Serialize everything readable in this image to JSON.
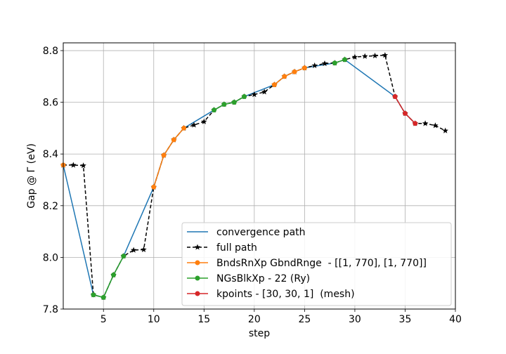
{
  "chart_data": {
    "type": "line",
    "title": "",
    "xlabel": "step",
    "ylabel": "Gap @ Γ (eV)",
    "xlim": [
      1,
      40
    ],
    "ylim": [
      7.8,
      8.83
    ],
    "xticks": [
      5,
      10,
      15,
      20,
      25,
      30,
      35,
      40
    ],
    "yticks": [
      7.8,
      8.0,
      8.2,
      8.4,
      8.6,
      8.8
    ],
    "grid": true,
    "legend_position": "lower-right",
    "series": [
      {
        "name": "convergence path",
        "color": "#1f77b4",
        "style": "solid",
        "marker": "none",
        "points": [
          [
            1,
            8.357
          ],
          [
            4,
            7.855
          ],
          [
            5,
            7.845
          ],
          [
            6,
            7.932
          ],
          [
            7,
            8.005
          ],
          [
            10,
            8.272
          ],
          [
            11,
            8.395
          ],
          [
            12,
            8.455
          ],
          [
            13,
            8.5
          ],
          [
            16,
            8.57
          ],
          [
            17,
            8.592
          ],
          [
            18,
            8.6
          ],
          [
            19,
            8.622
          ],
          [
            22,
            8.668
          ],
          [
            23,
            8.7
          ],
          [
            24,
            8.718
          ],
          [
            25,
            8.733
          ],
          [
            28,
            8.752
          ],
          [
            29,
            8.765
          ],
          [
            34,
            8.622
          ],
          [
            35,
            8.557
          ],
          [
            36,
            8.518
          ]
        ]
      },
      {
        "name": "full path",
        "color": "#000000",
        "style": "dashed",
        "marker": "star",
        "points": [
          [
            1,
            8.357
          ],
          [
            2,
            8.357
          ],
          [
            3,
            8.355
          ],
          [
            4,
            7.855
          ],
          [
            5,
            7.845
          ],
          [
            6,
            7.932
          ],
          [
            7,
            8.005
          ],
          [
            8,
            8.028
          ],
          [
            9,
            8.03
          ],
          [
            10,
            8.272
          ],
          [
            11,
            8.395
          ],
          [
            12,
            8.455
          ],
          [
            13,
            8.5
          ],
          [
            14,
            8.512
          ],
          [
            15,
            8.525
          ],
          [
            16,
            8.57
          ],
          [
            17,
            8.592
          ],
          [
            18,
            8.6
          ],
          [
            19,
            8.622
          ],
          [
            20,
            8.63
          ],
          [
            21,
            8.64
          ],
          [
            22,
            8.668
          ],
          [
            23,
            8.7
          ],
          [
            24,
            8.718
          ],
          [
            25,
            8.733
          ],
          [
            26,
            8.742
          ],
          [
            27,
            8.75
          ],
          [
            28,
            8.752
          ],
          [
            29,
            8.765
          ],
          [
            30,
            8.775
          ],
          [
            31,
            8.778
          ],
          [
            32,
            8.78
          ],
          [
            33,
            8.782
          ],
          [
            34,
            8.622
          ],
          [
            35,
            8.557
          ],
          [
            36,
            8.518
          ],
          [
            37,
            8.518
          ],
          [
            38,
            8.51
          ],
          [
            39,
            8.49
          ]
        ]
      },
      {
        "name": "BndsRnXp GbndRnge  - [[1, 770], [1, 770]]",
        "color": "#ff7f0e",
        "style": "solid",
        "marker": "circle",
        "segments": [
          [
            [
              1,
              8.357
            ]
          ],
          [
            [
              10,
              8.272
            ],
            [
              11,
              8.395
            ],
            [
              12,
              8.455
            ],
            [
              13,
              8.5
            ]
          ],
          [
            [
              22,
              8.668
            ],
            [
              23,
              8.7
            ],
            [
              24,
              8.718
            ],
            [
              25,
              8.733
            ]
          ]
        ]
      },
      {
        "name": "NGsBlkXp - 22 (Ry)",
        "color": "#2ca02c",
        "style": "solid",
        "marker": "circle",
        "segments": [
          [
            [
              4,
              7.855
            ],
            [
              5,
              7.845
            ],
            [
              6,
              7.932
            ],
            [
              7,
              8.005
            ]
          ],
          [
            [
              16,
              8.57
            ],
            [
              17,
              8.592
            ],
            [
              18,
              8.6
            ],
            [
              19,
              8.622
            ]
          ],
          [
            [
              28,
              8.752
            ],
            [
              29,
              8.765
            ]
          ]
        ]
      },
      {
        "name": "kpoints - [30, 30, 1]  (mesh)",
        "color": "#d62728",
        "style": "solid",
        "marker": "circle",
        "segments": [
          [
            [
              34,
              8.622
            ],
            [
              35,
              8.557
            ],
            [
              36,
              8.518
            ]
          ]
        ]
      }
    ]
  }
}
